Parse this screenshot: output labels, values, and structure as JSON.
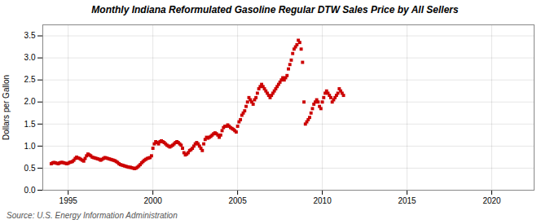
{
  "chart_data": {
    "type": "scatter",
    "title": "Monthly Indiana Reformulated Gasoline Regular DTW Sales Price by All Sellers",
    "ylabel": "Dollars per Gallon",
    "source": "Source: U.S. Energy Information Administration",
    "color": "#cc0000",
    "marker": "square",
    "grid": true,
    "xlim": [
      1993.5,
      2022.5
    ],
    "ylim": [
      0.0,
      3.75
    ],
    "xticks": [
      1995,
      2000,
      2005,
      2010,
      2015,
      2020
    ],
    "yticks": [
      {
        "value": 0.0,
        "label": "0.0"
      },
      0.5,
      {
        "value": 1.0,
        "label": "1.0"
      },
      1.5,
      {
        "value": 2.0,
        "label": "2.0"
      },
      2.5,
      {
        "value": 3.0,
        "label": "3.0"
      },
      3.5
    ],
    "x": [
      1994.0,
      1994.083,
      1994.167,
      1994.25,
      1994.333,
      1994.417,
      1994.5,
      1994.583,
      1994.667,
      1994.75,
      1994.833,
      1994.917,
      1995.0,
      1995.083,
      1995.167,
      1995.25,
      1995.333,
      1995.417,
      1995.5,
      1995.583,
      1995.667,
      1995.75,
      1995.833,
      1995.917,
      1996.0,
      1996.083,
      1996.167,
      1996.25,
      1996.333,
      1996.417,
      1996.5,
      1996.583,
      1996.667,
      1996.75,
      1996.833,
      1996.917,
      1997.0,
      1997.083,
      1997.167,
      1997.25,
      1997.333,
      1997.417,
      1997.5,
      1997.583,
      1997.667,
      1997.75,
      1997.833,
      1997.917,
      1998.0,
      1998.083,
      1998.167,
      1998.25,
      1998.333,
      1998.417,
      1998.5,
      1998.583,
      1998.667,
      1998.75,
      1998.833,
      1998.917,
      1999.0,
      1999.083,
      1999.167,
      1999.25,
      1999.333,
      1999.417,
      1999.5,
      1999.583,
      1999.667,
      1999.75,
      1999.833,
      1999.917,
      2000.0,
      2000.083,
      2000.167,
      2000.25,
      2000.333,
      2000.417,
      2000.5,
      2000.583,
      2000.667,
      2000.75,
      2000.833,
      2000.917,
      2001.0,
      2001.083,
      2001.167,
      2001.25,
      2001.333,
      2001.417,
      2001.5,
      2001.583,
      2001.667,
      2001.75,
      2001.833,
      2001.917,
      2002.0,
      2002.083,
      2002.167,
      2002.25,
      2002.333,
      2002.417,
      2002.5,
      2002.583,
      2002.667,
      2002.75,
      2002.833,
      2002.917,
      2003.0,
      2003.083,
      2003.167,
      2003.25,
      2003.333,
      2003.417,
      2003.5,
      2003.583,
      2003.667,
      2003.75,
      2003.833,
      2003.917,
      2004.0,
      2004.083,
      2004.167,
      2004.25,
      2004.333,
      2004.417,
      2004.5,
      2004.583,
      2004.667,
      2004.75,
      2004.833,
      2004.917,
      2005.0,
      2005.083,
      2005.167,
      2005.25,
      2005.333,
      2005.417,
      2005.5,
      2005.583,
      2005.667,
      2005.75,
      2005.833,
      2005.917,
      2006.0,
      2006.083,
      2006.167,
      2006.25,
      2006.333,
      2006.417,
      2006.5,
      2006.583,
      2006.667,
      2006.75,
      2006.833,
      2006.917,
      2007.0,
      2007.083,
      2007.167,
      2007.25,
      2007.333,
      2007.417,
      2007.5,
      2007.583,
      2007.667,
      2007.75,
      2007.833,
      2007.917,
      2008.0,
      2008.083,
      2008.167,
      2008.25,
      2008.333,
      2008.417,
      2008.5,
      2008.583,
      2008.667,
      2008.75,
      2008.833,
      2008.917,
      2009.0,
      2009.083,
      2009.167,
      2009.25,
      2009.333,
      2009.417,
      2009.5,
      2009.583,
      2009.667,
      2009.75,
      2009.833,
      2009.917,
      2010.0,
      2010.083,
      2010.167,
      2010.25,
      2010.333,
      2010.417,
      2010.5,
      2010.583,
      2010.667,
      2010.75,
      2010.833,
      2010.917,
      2011.0,
      2011.083,
      2011.167,
      2011.25
    ],
    "values": [
      0.6,
      0.62,
      0.63,
      0.62,
      0.61,
      0.6,
      0.62,
      0.63,
      0.63,
      0.62,
      0.61,
      0.6,
      0.61,
      0.63,
      0.64,
      0.65,
      0.68,
      0.72,
      0.75,
      0.73,
      0.72,
      0.7,
      0.68,
      0.66,
      0.72,
      0.78,
      0.82,
      0.8,
      0.78,
      0.75,
      0.74,
      0.73,
      0.72,
      0.71,
      0.7,
      0.68,
      0.7,
      0.72,
      0.74,
      0.73,
      0.72,
      0.71,
      0.7,
      0.69,
      0.68,
      0.67,
      0.65,
      0.63,
      0.6,
      0.58,
      0.57,
      0.56,
      0.55,
      0.54,
      0.53,
      0.52,
      0.52,
      0.51,
      0.5,
      0.49,
      0.5,
      0.52,
      0.55,
      0.58,
      0.62,
      0.65,
      0.68,
      0.7,
      0.72,
      0.73,
      0.74,
      0.78,
      0.95,
      1.05,
      1.1,
      1.08,
      1.05,
      1.1,
      1.12,
      1.1,
      1.08,
      1.05,
      1.02,
      1.0,
      0.98,
      1.0,
      1.02,
      1.05,
      1.08,
      1.1,
      1.08,
      1.05,
      1.02,
      0.95,
      0.85,
      0.8,
      0.82,
      0.85,
      0.9,
      0.92,
      0.95,
      1.0,
      1.05,
      1.08,
      1.05,
      1.0,
      0.95,
      0.9,
      1.05,
      1.15,
      1.2,
      1.18,
      1.2,
      1.22,
      1.25,
      1.28,
      1.3,
      1.28,
      1.25,
      1.2,
      1.25,
      1.35,
      1.42,
      1.45,
      1.45,
      1.48,
      1.45,
      1.42,
      1.4,
      1.38,
      1.35,
      1.32,
      1.45,
      1.55,
      1.6,
      1.7,
      1.75,
      1.8,
      1.9,
      2.0,
      2.1,
      2.05,
      2.0,
      1.95,
      2.05,
      2.1,
      2.2,
      2.3,
      2.35,
      2.4,
      2.35,
      2.3,
      2.25,
      2.2,
      2.15,
      2.1,
      2.15,
      2.2,
      2.25,
      2.3,
      2.35,
      2.4,
      2.45,
      2.5,
      2.55,
      2.5,
      2.55,
      2.6,
      2.75,
      2.85,
      2.95,
      3.1,
      3.2,
      3.25,
      3.3,
      3.4,
      3.35,
      3.2,
      2.9,
      2.0,
      1.5,
      1.55,
      1.6,
      1.65,
      1.75,
      1.85,
      1.95,
      2.0,
      2.05,
      2.0,
      1.9,
      1.85,
      2.0,
      2.1,
      2.2,
      2.25,
      2.2,
      2.15,
      2.1,
      2.0,
      2.05,
      2.1,
      2.15,
      2.2,
      2.3,
      2.25,
      2.2,
      2.15
    ]
  }
}
